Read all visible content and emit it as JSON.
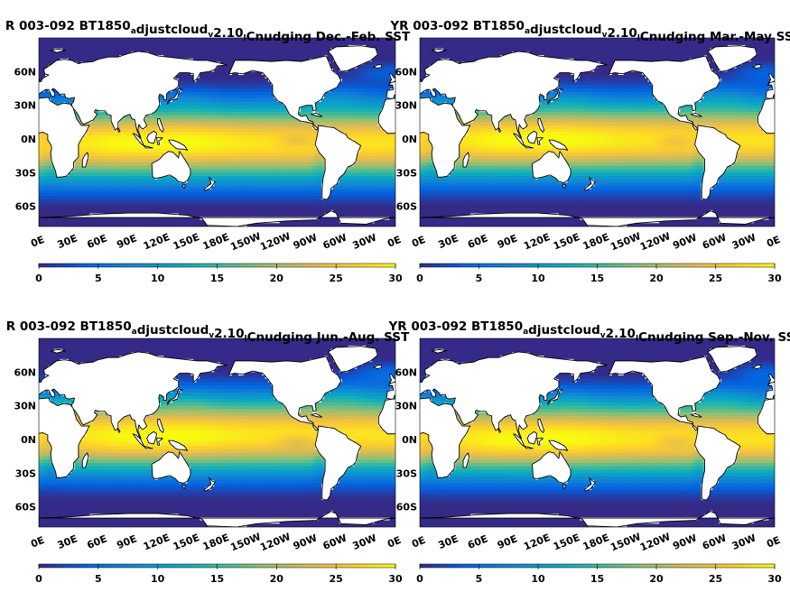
{
  "colormap": {
    "name": "parula",
    "stops": [
      "#352a87",
      "#0363e1",
      "#1485d4",
      "#06a7c6",
      "#38b99e",
      "#92bf73",
      "#d9ba56",
      "#fcce2e",
      "#f9fb0e"
    ]
  },
  "land_color": "#ffffff",
  "coast_color": "#000000",
  "lat_labels": [
    "60N",
    "30N",
    "0N",
    "30S",
    "60S"
  ],
  "lon_labels": [
    "0E",
    "30E",
    "60E",
    "90E",
    "120E",
    "150E",
    "180E",
    "150W",
    "120W",
    "90W",
    "60W",
    "30W",
    "0E"
  ],
  "colorbar_ticks": [
    "0",
    "5",
    "10",
    "15",
    "20",
    "25",
    "30"
  ],
  "colorbar_range": [
    0,
    30
  ],
  "panels": [
    {
      "title_pre": "R 003-092 BT1850",
      "title_sub1": "a",
      "title_mid": "djustcloud",
      "title_sub2": "v",
      "title_mid2": "2.10",
      "title_sub3": "l",
      "title_post": "Cnudging Dec.-Feb. SST",
      "season": "DJF"
    },
    {
      "title_pre": "YR 003-092 BT1850",
      "title_sub1": "a",
      "title_mid": "djustcloud",
      "title_sub2": "v",
      "title_mid2": "2.10",
      "title_sub3": "l",
      "title_post": "Cnudging Mar.-May SST",
      "season": "MAM"
    },
    {
      "title_pre": "R 003-092 BT1850",
      "title_sub1": "a",
      "title_mid": "djustcloud",
      "title_sub2": "v",
      "title_mid2": "2.10",
      "title_sub3": "l",
      "title_post": "Cnudging Jun.-Aug. SST",
      "season": "JJA"
    },
    {
      "title_pre": "YR 003-092 BT1850",
      "title_sub1": "a",
      "title_mid": "djustcloud",
      "title_sub2": "v",
      "title_mid2": "2.10",
      "title_sub3": "l",
      "title_post": "Cnudging Sep.-Nov. SST",
      "season": "SON"
    }
  ]
}
